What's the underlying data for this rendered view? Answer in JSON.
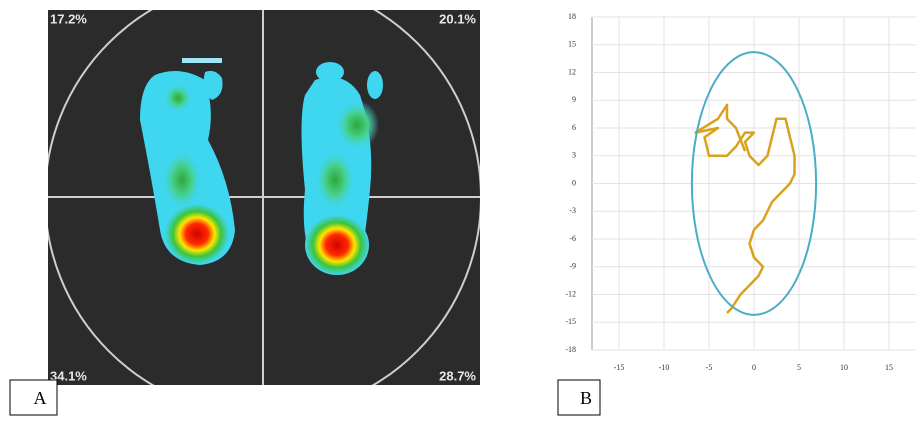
{
  "panel_a": {
    "label": "A",
    "quadrants": [
      "17.2%",
      "20.1%",
      "34.1%",
      "28.7%"
    ]
  },
  "panel_b_label": "B",
  "chart_data": {
    "type": "line",
    "x": [
      -3,
      -2.5,
      -1.5,
      -0.5,
      0.5,
      1,
      0,
      -0.5,
      0,
      1,
      1.5,
      2,
      3,
      4,
      4.5,
      4.5,
      4,
      3.5,
      2.5,
      2,
      1.5,
      0.5,
      -0.5,
      -1,
      0,
      -1,
      -2,
      -3,
      -5,
      -5.5,
      -4,
      -6.5,
      -4,
      -3,
      -3,
      -2,
      -1
    ],
    "values": [
      -14,
      -13.5,
      -12,
      -11,
      -10,
      -9,
      -8,
      -6.5,
      -5,
      -4,
      -3,
      -2,
      -1,
      0,
      1,
      3,
      5,
      7,
      7,
      5,
      3,
      2,
      3,
      4.5,
      5.5,
      5.5,
      4,
      3,
      3,
      5,
      6,
      5.5,
      7,
      8.5,
      7,
      6,
      3.5
    ],
    "color": "#d9a21b",
    "ellipse": {
      "cx": 0,
      "cy": 0,
      "rx": 6.9,
      "ry": 14.2,
      "color": "#4bacc6"
    },
    "xlim": [
      -18,
      18
    ],
    "xticks": [
      -15,
      -10,
      -5,
      0,
      5,
      10,
      15
    ],
    "ylim": [
      -18,
      18
    ],
    "yticks": [
      -18,
      -15,
      -12,
      -9,
      -6,
      -3,
      0,
      3,
      6,
      9,
      12,
      15,
      18
    ],
    "grid": true
  }
}
